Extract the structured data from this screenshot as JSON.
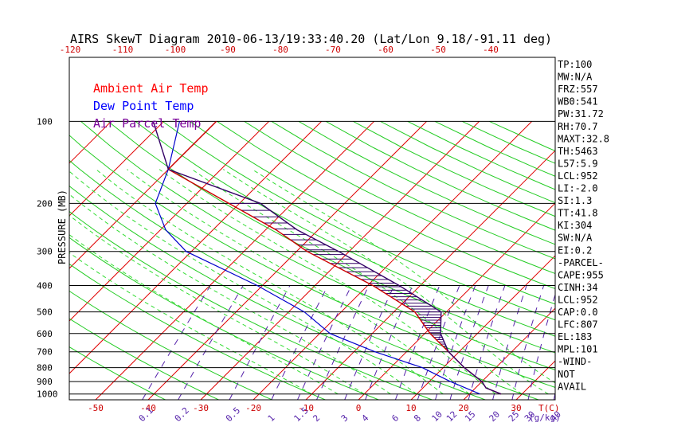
{
  "chart_data": {
    "type": "line",
    "title": "AIRS SkewT Diagram 2010-06-13/19:33:40.20 (Lat/Lon 9.18/-91.11 deg)",
    "ylabel": "PRESSURE (MB)",
    "xlabel_right": "T(C)",
    "mixing_ratio_unit": "(g/kg)",
    "pressure_ticks": [
      100,
      200,
      300,
      400,
      500,
      600,
      700,
      800,
      900,
      1000
    ],
    "pressure_range": [
      100,
      1050
    ],
    "top_temp_ticks": [
      -120,
      -110,
      -100,
      -90,
      -80,
      -70,
      -60,
      -50,
      -40
    ],
    "bottom_temp_ticks": [
      -50,
      -40,
      -30,
      -20,
      -10,
      0,
      10,
      20,
      30
    ],
    "mixing_ratio_labels": [
      "0.1",
      "0.2",
      "0.5",
      "1",
      "1.5",
      "2",
      "3",
      "4",
      "6",
      "8",
      "10",
      "12",
      "15",
      "20",
      "25",
      "30",
      "40"
    ],
    "legend": [
      {
        "label": "Ambient Air Temp",
        "color": "#ff0000"
      },
      {
        "label": "Dew Point Temp",
        "color": "#0000ff"
      },
      {
        "label": "Air Parcel Temp",
        "color": "#7a0099"
      }
    ],
    "series": [
      {
        "name": "Ambient Air Temp",
        "color": "#cc0000",
        "points": [
          [
            100,
            -80
          ],
          [
            150,
            -80
          ],
          [
            200,
            -62
          ],
          [
            250,
            -48
          ],
          [
            300,
            -38
          ],
          [
            400,
            -19
          ],
          [
            500,
            -6
          ],
          [
            600,
            1
          ],
          [
            700,
            8
          ],
          [
            800,
            14
          ],
          [
            900,
            20
          ],
          [
            950,
            22
          ],
          [
            1000,
            26
          ]
        ]
      },
      {
        "name": "Dew Point Temp",
        "color": "#0000cc",
        "points": [
          [
            100,
            -87
          ],
          [
            150,
            -80
          ],
          [
            200,
            -76
          ],
          [
            250,
            -69
          ],
          [
            300,
            -61
          ],
          [
            400,
            -41
          ],
          [
            500,
            -27
          ],
          [
            600,
            -18
          ],
          [
            700,
            -6
          ],
          [
            800,
            6
          ],
          [
            900,
            14
          ],
          [
            1000,
            22
          ]
        ]
      },
      {
        "name": "Air Parcel Temp",
        "color": "#330066",
        "points": [
          [
            100,
            -92
          ],
          [
            150,
            -80
          ],
          [
            200,
            -56
          ],
          [
            250,
            -44
          ],
          [
            300,
            -32
          ],
          [
            400,
            -14
          ],
          [
            500,
            -1
          ],
          [
            600,
            3
          ],
          [
            700,
            8
          ],
          [
            800,
            14
          ],
          [
            900,
            20
          ],
          [
            950,
            22
          ],
          [
            1000,
            26
          ]
        ]
      }
    ],
    "indices": [
      "TP:100",
      "MW:N/A",
      "FRZ:557",
      "WB0:541",
      "PW:31.72",
      "RH:70.7",
      "MAXT:32.8",
      "TH:5463",
      "L57:5.9",
      "LCL:952",
      "LI:-2.0",
      "SI:1.3",
      "TT:41.8",
      "KI:304",
      "SW:N/A",
      "EI:0.2",
      "-PARCEL-",
      "CAPE:955",
      "CINH:34",
      "LCL:952",
      "CAP:0.0",
      "LFC:807",
      "EL:183",
      "MPL:101",
      "-WIND-",
      "NOT",
      "AVAIL"
    ]
  }
}
